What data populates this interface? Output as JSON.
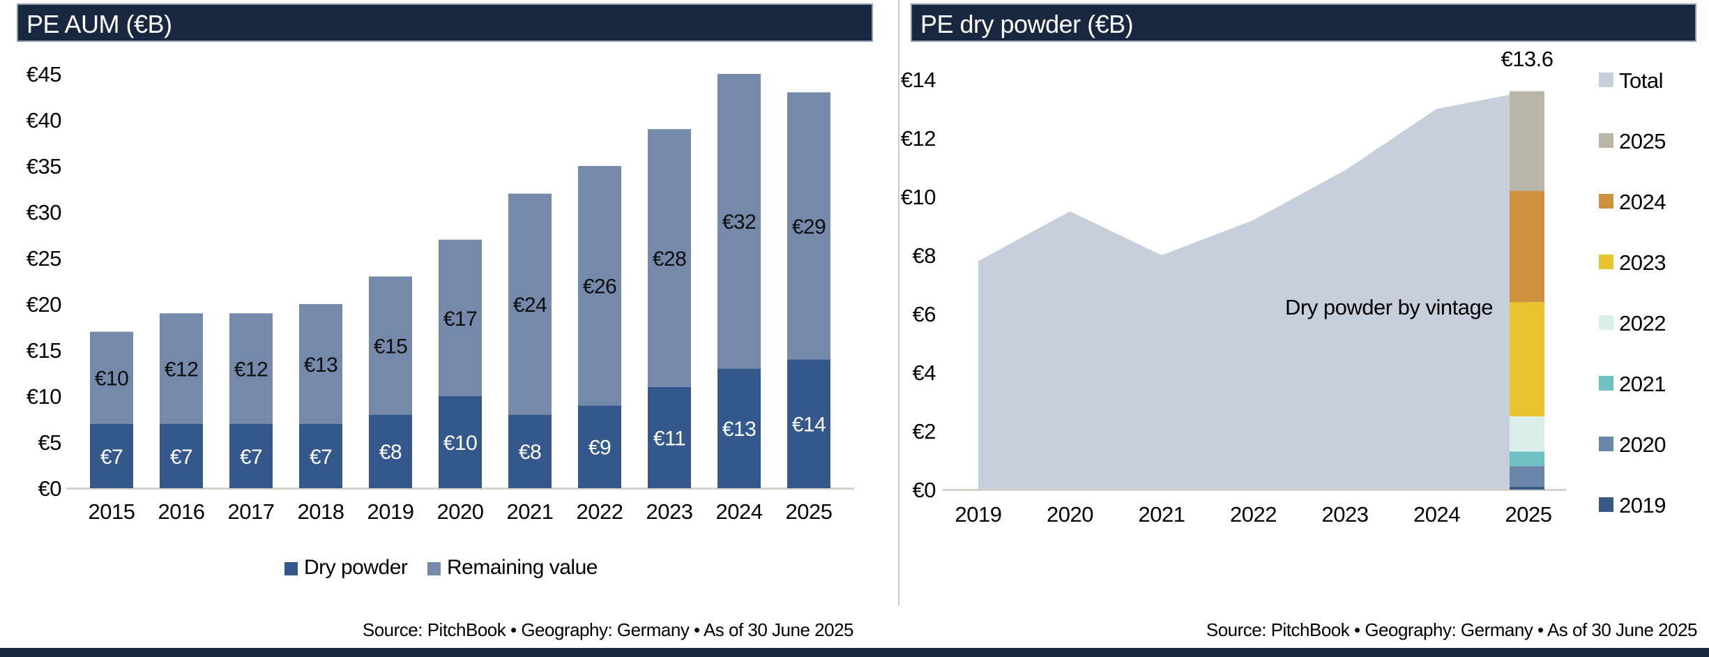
{
  "left_panel": {
    "title": "PE AUM (€B)",
    "source": "Source: PitchBook • Geography: Germany • As of 30 June 2025",
    "yticks": [
      "€0",
      "€5",
      "€10",
      "€15",
      "€20",
      "€25",
      "€30",
      "€35",
      "€40",
      "€45"
    ],
    "legend": [
      {
        "label": "Dry powder",
        "color": "#35588c"
      },
      {
        "label": "Remaining value",
        "color": "#7589aa"
      }
    ]
  },
  "right_panel": {
    "title": "PE dry powder (€B)",
    "source": "Source: PitchBook • Geography: Germany • As of 30 June 2025",
    "annotation": "Dry powder by vintage",
    "peak_label": "€13.6",
    "yticks": [
      "€0",
      "€2",
      "€4",
      "€6",
      "€8",
      "€10",
      "€12",
      "€14"
    ],
    "legend": [
      {
        "label": "Total",
        "color": "#c7cfdc"
      },
      {
        "label": "2025",
        "color": "#b9b6a9"
      },
      {
        "label": "2024",
        "color": "#d0913e"
      },
      {
        "label": "2023",
        "color": "#eac42f"
      },
      {
        "label": "2022",
        "color": "#d9efe8"
      },
      {
        "label": "2021",
        "color": "#6fc0c3"
      },
      {
        "label": "2020",
        "color": "#6a86ab"
      },
      {
        "label": "2019",
        "color": "#375b87"
      }
    ]
  },
  "chart_data": [
    {
      "type": "bar",
      "stacked": true,
      "title": "PE AUM (€B)",
      "categories": [
        "2015",
        "2016",
        "2017",
        "2018",
        "2019",
        "2020",
        "2021",
        "2022",
        "2023",
        "2024",
        "2025"
      ],
      "series": [
        {
          "name": "Dry powder",
          "color": "#35588c",
          "label_color": "#ffffff",
          "values": [
            7,
            7,
            7,
            7,
            8,
            10,
            8,
            9,
            11,
            13,
            14
          ],
          "labels": [
            "€7",
            "€7",
            "€7",
            "€7",
            "€8",
            "€10",
            "€8",
            "€9",
            "€11",
            "€13",
            "€14"
          ]
        },
        {
          "name": "Remaining value",
          "color": "#7589aa",
          "label_color": "#0d0d0d",
          "values": [
            10,
            12,
            12,
            13,
            15,
            17,
            24,
            26,
            28,
            32,
            29
          ],
          "labels": [
            "€10",
            "€12",
            "€12",
            "€13",
            "€15",
            "€17",
            "€24",
            "€26",
            "€28",
            "€32",
            "€29"
          ]
        }
      ],
      "ylabel": "",
      "xlabel": "",
      "ylim": [
        0,
        45
      ],
      "ytick_step": 5,
      "grid": false,
      "legend_position": "bottom"
    },
    {
      "type": "area",
      "title": "PE dry powder (€B)",
      "categories": [
        "2019",
        "2020",
        "2021",
        "2022",
        "2023",
        "2024",
        "2025"
      ],
      "series": [
        {
          "name": "Total",
          "color": "#c7cfdc",
          "values": [
            7.8,
            9.5,
            8.0,
            9.2,
            10.9,
            13.0,
            13.6
          ]
        }
      ],
      "stacked_bar_2025": {
        "total": 13.6,
        "total_label": "€13.6",
        "segments_bottom_to_top": [
          {
            "name": "2019",
            "value": 0.1,
            "color": "#375b87"
          },
          {
            "name": "2020",
            "value": 0.7,
            "color": "#6a86ab"
          },
          {
            "name": "2021",
            "value": 0.5,
            "color": "#6fc0c3"
          },
          {
            "name": "2022",
            "value": 1.2,
            "color": "#d9efe8"
          },
          {
            "name": "2023",
            "value": 3.9,
            "color": "#eac42f"
          },
          {
            "name": "2024",
            "value": 3.8,
            "color": "#d0913e"
          },
          {
            "name": "2025",
            "value": 3.4,
            "color": "#b9b6a9"
          }
        ]
      },
      "annotation": "Dry powder by vintage",
      "ylabel": "",
      "xlabel": "",
      "ylim": [
        0,
        14
      ],
      "ytick_step": 2,
      "grid": false,
      "legend_position": "right"
    }
  ]
}
